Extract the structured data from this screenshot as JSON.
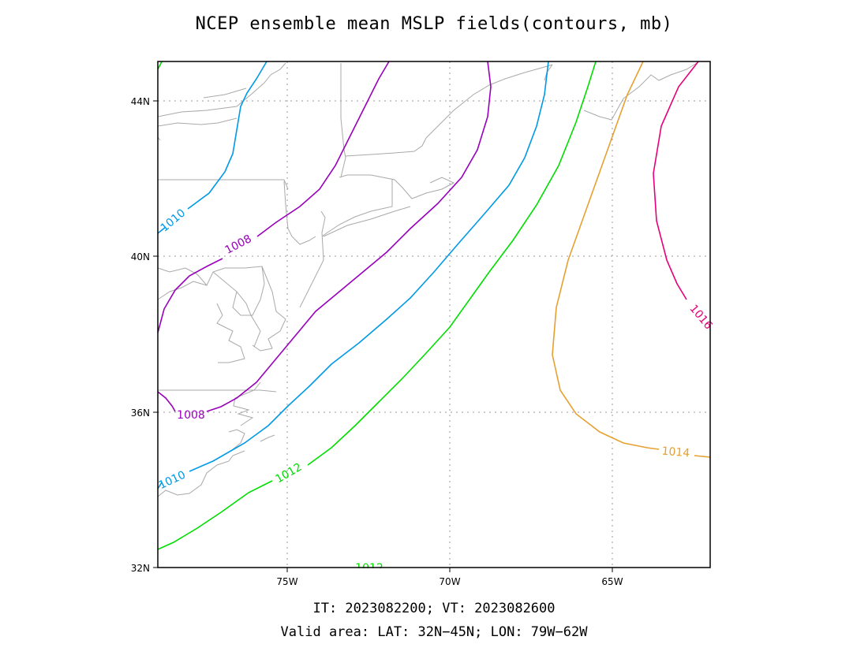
{
  "title": "NCEP ensemble mean MSLP fields(contours, mb)",
  "subtitle_times": "IT: 2023082200; VT: 2023082600",
  "subtitle_area": "Valid area: LAT: 32N−45N; LON: 79W−62W",
  "axes": {
    "lat_labels": [
      "32N",
      "36N",
      "40N",
      "44N"
    ],
    "lon_labels": [
      "75W",
      "70W",
      "65W"
    ],
    "lat_range": [
      32,
      45
    ],
    "lon_range": [
      -79,
      -62
    ],
    "grid": "dotted"
  },
  "contours": [
    {
      "value": "1008",
      "color": "#9900bb"
    },
    {
      "value": "1010",
      "color": "#0099e6"
    },
    {
      "value": "1012",
      "color": "#00dd00"
    },
    {
      "value": "1014",
      "color": "#e6a032"
    },
    {
      "value": "1016",
      "color": "#e6007a"
    }
  ],
  "contour_labels": {
    "l1010_upper": "1010",
    "l1008_upper": "1008",
    "l1008_lower": "1008",
    "l1010_lower": "1010",
    "l1012_mid": "1012",
    "l1012_bottom": "1012",
    "l1014": "1014",
    "l1016": "1016"
  },
  "colors": {
    "coastline": "#a9a9a9",
    "grid": "#999999",
    "frame": "#000000"
  }
}
